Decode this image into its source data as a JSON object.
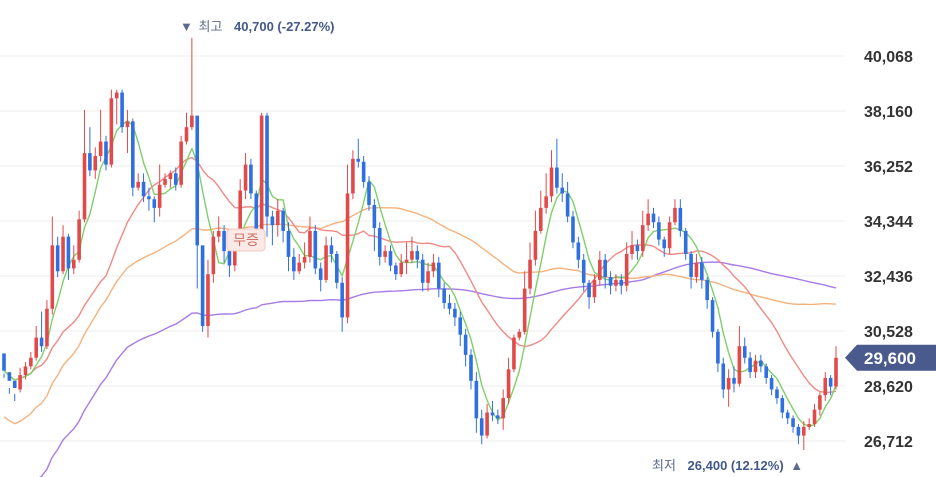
{
  "chart_data": {
    "type": "candlestick",
    "y_ticks": [
      40068,
      38160,
      36252,
      34344,
      32436,
      30528,
      28620,
      26712
    ],
    "ylim": [
      25600,
      41300
    ],
    "grid": true,
    "current_price": "29,600",
    "high_annotation": {
      "marker": "▼",
      "label": "최고",
      "value": "40,700 (-27.27%)"
    },
    "low_annotation": {
      "label": "최저",
      "value": "26,400 (12.12%)",
      "marker": "▲"
    },
    "event_tag": "무증",
    "colors": {
      "up": "#e04a4a",
      "down": "#2f6fe0",
      "ma5": "#7fcf6a",
      "ma20": "#ef8a85",
      "ma60": "#f4b27e",
      "ma120": "#a77be8",
      "price_tag": "#4a5a8c"
    },
    "candles": [
      [
        29750,
        29150,
        29050,
        28900
      ],
      [
        29100,
        28800,
        28550,
        28350
      ],
      [
        28800,
        28550,
        28350,
        28100
      ],
      [
        28500,
        29000,
        29250,
        28400
      ],
      [
        29000,
        29300,
        29450,
        28850
      ],
      [
        29300,
        29600,
        29800,
        29200
      ],
      [
        29600,
        30300,
        30700,
        29500
      ],
      [
        30300,
        30000,
        31200,
        29800
      ],
      [
        30000,
        31300,
        31600,
        29900
      ],
      [
        31300,
        33500,
        34500,
        31100
      ],
      [
        33500,
        32600,
        33800,
        32400
      ],
      [
        32600,
        33800,
        34200,
        32500
      ],
      [
        33800,
        32700,
        33900,
        32300
      ],
      [
        32700,
        33000,
        33500,
        32500
      ],
      [
        33000,
        34400,
        34700,
        32900
      ],
      [
        34400,
        36700,
        38200,
        34300
      ],
      [
        36700,
        36100,
        37600,
        35900
      ],
      [
        36100,
        36600,
        36900,
        35800
      ],
      [
        36600,
        37100,
        38200,
        36400
      ],
      [
        37100,
        36300,
        37300,
        36100
      ],
      [
        36300,
        38600,
        38900,
        36200
      ],
      [
        38600,
        38800,
        38900,
        37700
      ],
      [
        38800,
        37600,
        38900,
        37400
      ],
      [
        37600,
        37800,
        38200,
        36700
      ],
      [
        37800,
        35500,
        37900,
        35200
      ],
      [
        35500,
        35700,
        36000,
        35400
      ],
      [
        35700,
        35200,
        36000,
        35000
      ],
      [
        35200,
        35100,
        35500,
        34700
      ],
      [
        35100,
        34800,
        35200,
        34300
      ],
      [
        34800,
        35600,
        36300,
        34500
      ],
      [
        35600,
        35800,
        36000,
        35500
      ],
      [
        35800,
        36000,
        36100,
        35500
      ],
      [
        36000,
        35600,
        36200,
        35400
      ],
      [
        35600,
        37100,
        37300,
        35500
      ],
      [
        37100,
        37600,
        38100,
        37000
      ],
      [
        37600,
        38000,
        40700,
        37500
      ],
      [
        38000,
        33500,
        34500,
        32000
      ],
      [
        33500,
        30700,
        31400,
        30500
      ],
      [
        30700,
        32500,
        33000,
        30300
      ],
      [
        32500,
        33800,
        34000,
        32200
      ],
      [
        33800,
        34000,
        34500,
        33600
      ],
      [
        34000,
        33300,
        34200,
        32900
      ],
      [
        33300,
        32800,
        33600,
        32400
      ],
      [
        32800,
        33500,
        33900,
        32600
      ],
      [
        33500,
        35400,
        35800,
        33300
      ],
      [
        35400,
        36300,
        36700,
        35100
      ],
      [
        36300,
        35300,
        36500,
        35100
      ],
      [
        35300,
        34000,
        35400,
        33700
      ],
      [
        34000,
        38000,
        38100,
        33900
      ],
      [
        38000,
        34500,
        38100,
        33800
      ],
      [
        34500,
        34200,
        34700,
        33500
      ],
      [
        34200,
        34700,
        35100,
        33800
      ],
      [
        34700,
        34000,
        34800,
        33600
      ],
      [
        34000,
        33100,
        34300,
        32600
      ],
      [
        33100,
        32600,
        33400,
        32300
      ],
      [
        32600,
        32900,
        33200,
        32500
      ],
      [
        32900,
        33100,
        33600,
        32700
      ],
      [
        33100,
        34000,
        34500,
        32900
      ],
      [
        34000,
        32700,
        34200,
        32500
      ],
      [
        32700,
        32300,
        32900,
        31900
      ],
      [
        32300,
        33500,
        33800,
        32200
      ],
      [
        33500,
        33200,
        33800,
        32900
      ],
      [
        33200,
        32200,
        33300,
        32000
      ],
      [
        32200,
        31000,
        32400,
        30500
      ],
      [
        31000,
        35300,
        36300,
        30800
      ],
      [
        35300,
        36500,
        36800,
        35100
      ],
      [
        36500,
        36400,
        37200,
        36200
      ],
      [
        36400,
        35700,
        36600,
        35500
      ],
      [
        35700,
        34900,
        35900,
        34700
      ],
      [
        34900,
        34100,
        35100,
        33300
      ],
      [
        34100,
        33100,
        34300,
        32800
      ],
      [
        33100,
        33300,
        33500,
        32900
      ],
      [
        33300,
        32800,
        33500,
        32600
      ],
      [
        32800,
        32500,
        32900,
        32300
      ],
      [
        32500,
        32900,
        33200,
        32400
      ],
      [
        32900,
        33000,
        33600,
        32500
      ],
      [
        33000,
        33300,
        33800,
        32900
      ],
      [
        33300,
        33000,
        33500,
        32700
      ],
      [
        33000,
        32200,
        33200,
        31900
      ],
      [
        32200,
        32600,
        32900,
        31900
      ],
      [
        32600,
        32900,
        33200,
        32400
      ],
      [
        32900,
        32000,
        33100,
        31700
      ],
      [
        32000,
        31500,
        32200,
        31300
      ],
      [
        31500,
        31300,
        31800,
        31100
      ],
      [
        31300,
        31000,
        31500,
        30700
      ],
      [
        31000,
        30400,
        31200,
        30000
      ],
      [
        30400,
        29700,
        30600,
        29300
      ],
      [
        29700,
        28800,
        29900,
        28500
      ],
      [
        28800,
        27500,
        29100,
        27000
      ],
      [
        27500,
        26900,
        27800,
        26600
      ],
      [
        26900,
        27700,
        28000,
        26800
      ],
      [
        27700,
        27600,
        28100,
        27400
      ],
      [
        27600,
        27500,
        27800,
        27300
      ],
      [
        27500,
        28200,
        28500,
        27100
      ],
      [
        28200,
        29200,
        29600,
        28000
      ],
      [
        29200,
        30300,
        30400,
        29100
      ],
      [
        30300,
        30500,
        30600,
        30200
      ],
      [
        30500,
        32000,
        32600,
        30400
      ],
      [
        32000,
        33000,
        33600,
        31800
      ],
      [
        33000,
        34000,
        34700,
        32800
      ],
      [
        34000,
        34800,
        35400,
        33900
      ],
      [
        34800,
        35200,
        36000,
        34600
      ],
      [
        35200,
        36200,
        36800,
        35000
      ],
      [
        36200,
        35500,
        37200,
        35300
      ],
      [
        35500,
        35300,
        36000,
        35000
      ],
      [
        35300,
        34500,
        35700,
        34300
      ],
      [
        34500,
        33600,
        34700,
        33400
      ],
      [
        33600,
        33000,
        33800,
        32700
      ],
      [
        33000,
        32200,
        33200,
        31900
      ],
      [
        32200,
        31700,
        32300,
        31300
      ],
      [
        31700,
        32300,
        32500,
        31500
      ],
      [
        32300,
        33000,
        33300,
        32100
      ],
      [
        33000,
        32400,
        33200,
        32000
      ],
      [
        32400,
        32100,
        32600,
        31800
      ],
      [
        32100,
        32300,
        32500,
        31900
      ],
      [
        32300,
        32100,
        32500,
        31800
      ],
      [
        32100,
        33200,
        33600,
        31900
      ],
      [
        33200,
        33500,
        34000,
        33000
      ],
      [
        33500,
        33300,
        33700,
        33000
      ],
      [
        33300,
        34200,
        34700,
        33100
      ],
      [
        34200,
        34600,
        35100,
        34000
      ],
      [
        34600,
        34300,
        34800,
        34100
      ],
      [
        34300,
        33700,
        34500,
        33500
      ],
      [
        33700,
        33400,
        33800,
        33100
      ],
      [
        33400,
        34300,
        34500,
        33200
      ],
      [
        34300,
        34800,
        35100,
        34200
      ],
      [
        34800,
        34000,
        35100,
        33800
      ],
      [
        34000,
        33200,
        34100,
        33000
      ],
      [
        33200,
        32400,
        33300,
        32000
      ],
      [
        32400,
        32900,
        33200,
        32200
      ],
      [
        32900,
        32300,
        33100,
        32000
      ],
      [
        32300,
        31600,
        32400,
        31300
      ],
      [
        31600,
        30500,
        31700,
        30300
      ],
      [
        30500,
        29400,
        30600,
        29100
      ],
      [
        29400,
        28500,
        29600,
        28200
      ],
      [
        28500,
        28900,
        29200,
        27900
      ],
      [
        28900,
        28700,
        29300,
        28400
      ],
      [
        28700,
        30000,
        30700,
        28600
      ],
      [
        30000,
        29600,
        30300,
        29400
      ],
      [
        29600,
        29100,
        29800,
        28900
      ],
      [
        29100,
        29500,
        29700,
        28900
      ],
      [
        29500,
        29300,
        29700,
        29100
      ],
      [
        29300,
        28900,
        29400,
        28700
      ],
      [
        28900,
        28500,
        29000,
        28300
      ],
      [
        28500,
        28200,
        28600,
        28000
      ],
      [
        28200,
        27700,
        28300,
        27500
      ],
      [
        27700,
        27500,
        27800,
        27300
      ],
      [
        27500,
        27200,
        27600,
        27000
      ],
      [
        27200,
        26900,
        27300,
        26600
      ],
      [
        26900,
        27200,
        27400,
        26400
      ],
      [
        27200,
        27300,
        27500,
        27100
      ],
      [
        27300,
        27800,
        28000,
        27200
      ],
      [
        27800,
        28300,
        28400,
        27600
      ],
      [
        28300,
        28900,
        29100,
        28100
      ],
      [
        28900,
        28600,
        29000,
        28300
      ],
      [
        28600,
        29600,
        30000,
        28500
      ]
    ]
  }
}
